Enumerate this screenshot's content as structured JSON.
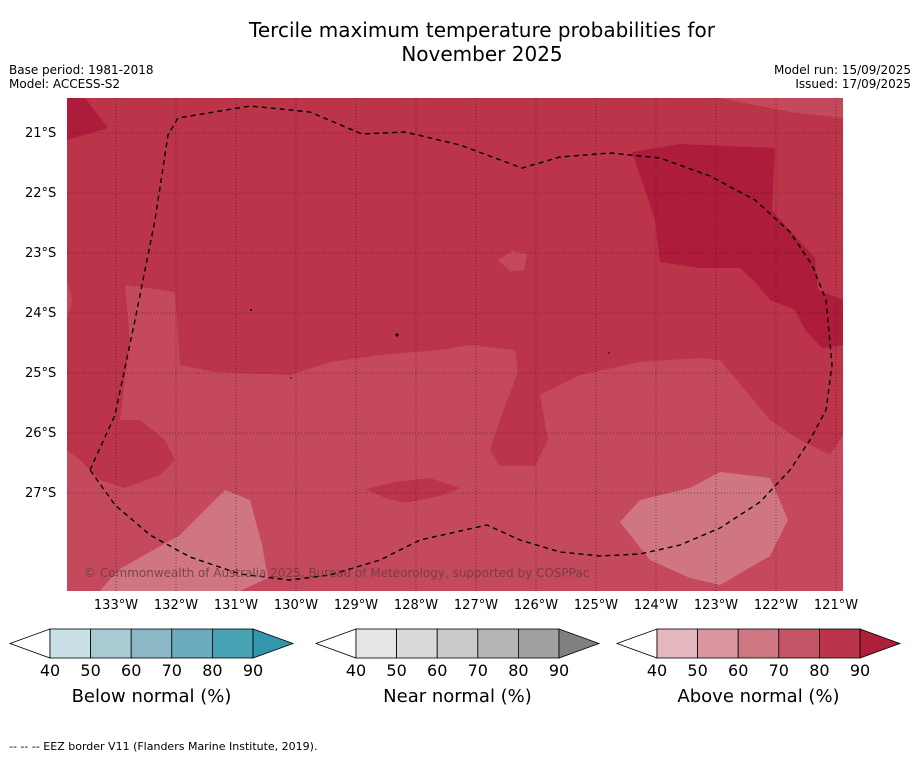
{
  "title_line1": "Tercile maximum temperature probabilities for",
  "title_line2": "November 2025",
  "meta": {
    "base_period": "Base period: 1981-2018",
    "model": "Model: ACCESS-S2",
    "model_run": "Model run: 15/09/2025",
    "issued": "Issued: 17/09/2025"
  },
  "map": {
    "lat_labels": [
      "21°S",
      "22°S",
      "23°S",
      "24°S",
      "25°S",
      "26°S",
      "27°S"
    ],
    "lon_labels": [
      "133°W",
      "132°W",
      "131°W",
      "130°W",
      "129°W",
      "128°W",
      "127°W",
      "126°W",
      "125°W",
      "124°W",
      "123°W",
      "122°W",
      "121°W"
    ],
    "copyright": "© Commonwealth of Australia 2025, Bureau of Meteorology, supported by COSPPac",
    "colors": {
      "above_70": "#c0475a",
      "above_80": "#bb344a",
      "above_90": "#ad1c3a",
      "above_60": "#d07682"
    }
  },
  "colorbars": [
    {
      "title": "Below normal (%)",
      "ticks": [
        "40",
        "50",
        "60",
        "70",
        "80",
        "90"
      ],
      "colors": [
        "#ffffff",
        "#c9e1e6",
        "#a9ccd4",
        "#8cb8c5",
        "#6aabbd",
        "#47a2b4",
        "#3397ab"
      ]
    },
    {
      "title": "Near normal (%)",
      "ticks": [
        "40",
        "50",
        "60",
        "70",
        "80",
        "90"
      ],
      "colors": [
        "#ffffff",
        "#e5e5e5",
        "#d9d9d9",
        "#cacaca",
        "#b5b5b5",
        "#a0a0a0",
        "#808080"
      ]
    },
    {
      "title": "Above normal (%)",
      "ticks": [
        "40",
        "50",
        "60",
        "70",
        "80",
        "90"
      ],
      "colors": [
        "#ffffff",
        "#e5b7be",
        "#d9969f",
        "#cf7782",
        "#c55466",
        "#bb344a",
        "#ae1f3a"
      ]
    }
  ],
  "footnote": "--  --  -- EEZ border V11 (Flanders Marine Institute, 2019)."
}
